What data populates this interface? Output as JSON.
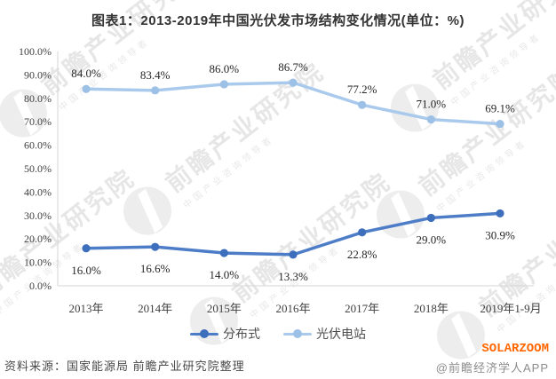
{
  "chart_data": {
    "type": "line",
    "title": "图表1：2013-2019年中国光伏发市场结构变化情况(单位：%)",
    "categories": [
      "2013年",
      "2014年",
      "2015年",
      "2016年",
      "2017年",
      "2018年",
      "2019年1-9月"
    ],
    "series": [
      {
        "name": "分布式",
        "values": [
          16.0,
          16.6,
          14.0,
          13.3,
          22.8,
          29.0,
          30.9
        ],
        "line_color": "#4E7DC8",
        "marker_color": "#3E6FBC",
        "label_position": "below"
      },
      {
        "name": "光伏电站",
        "values": [
          84.0,
          83.4,
          86.0,
          86.7,
          77.2,
          71.0,
          69.1
        ],
        "line_color": "#A9CAEC",
        "marker_color": "#9CC0E6",
        "label_position": "above"
      }
    ],
    "xlabel": "",
    "ylabel": "",
    "ylim": [
      0,
      100
    ],
    "ytick_labels": [
      "0.0%",
      "10.0%",
      "20.0%",
      "30.0%",
      "40.0%",
      "50.0%",
      "60.0%",
      "70.0%",
      "80.0%",
      "90.0%",
      "100.0%"
    ],
    "grid": false,
    "legend_position": "bottom",
    "value_label_format": "0.0%"
  },
  "footer": {
    "source": "资料来源：国家能源局 前瞻产业研究院整理",
    "brand": "SOLARZOOM",
    "brand_color": "#FF6600",
    "credit": "@前瞻经济学人APP"
  },
  "watermark": {
    "text": "前瞻产业研究院",
    "subtext": "中国产业咨询领导者"
  }
}
